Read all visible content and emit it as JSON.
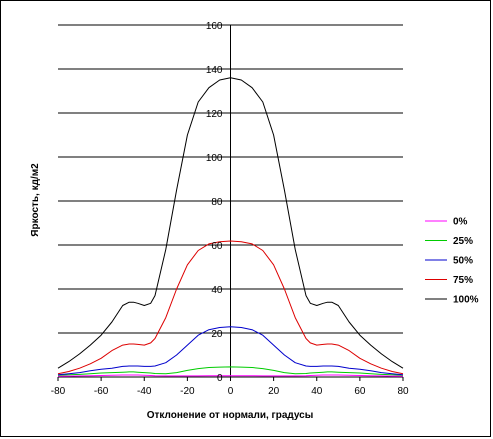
{
  "chart_data": {
    "type": "line",
    "title": "",
    "xlabel": "Отклонение от нормали, градусы",
    "ylabel": "Яркость, кд/м2",
    "xlim": [
      -80,
      80
    ],
    "ylim": [
      0,
      160
    ],
    "xticks": [
      -80,
      -60,
      -40,
      -20,
      0,
      20,
      40,
      60,
      80
    ],
    "yticks": [
      0,
      20,
      40,
      60,
      80,
      100,
      120,
      140,
      160
    ],
    "grid": "horizontal",
    "legend": "right",
    "x": [
      -80,
      -75,
      -70,
      -65,
      -60,
      -55,
      -50,
      -47,
      -45,
      -43,
      -40,
      -37,
      -35,
      -30,
      -25,
      -20,
      -15,
      -10,
      -5,
      0,
      5,
      10,
      15,
      20,
      25,
      30,
      35,
      37,
      40,
      43,
      45,
      47,
      50,
      55,
      60,
      65,
      70,
      75,
      80
    ],
    "series": [
      {
        "name": "0%",
        "color": "#ff00ff",
        "values": [
          0.3,
          0.4,
          0.5,
          0.6,
          0.7,
          0.8,
          0.9,
          0.9,
          0.9,
          0.9,
          0.8,
          0.7,
          0.6,
          0.5,
          0.5,
          0.5,
          0.5,
          0.6,
          0.6,
          0.6,
          0.6,
          0.6,
          0.5,
          0.5,
          0.5,
          0.5,
          0.6,
          0.7,
          0.8,
          0.9,
          0.9,
          0.9,
          0.9,
          0.8,
          0.7,
          0.6,
          0.5,
          0.4,
          0.3
        ]
      },
      {
        "name": "25%",
        "color": "#00cc00",
        "values": [
          0.8,
          1.0,
          1.2,
          1.5,
          1.8,
          2.0,
          2.2,
          2.3,
          2.3,
          2.2,
          2.0,
          1.8,
          1.6,
          1.5,
          2.0,
          3.0,
          3.8,
          4.3,
          4.5,
          4.6,
          4.5,
          4.3,
          3.8,
          3.0,
          2.0,
          1.5,
          1.6,
          1.8,
          2.0,
          2.2,
          2.3,
          2.3,
          2.2,
          2.0,
          1.8,
          1.5,
          1.2,
          1.0,
          0.8
        ]
      },
      {
        "name": "50%",
        "color": "#0000cc",
        "values": [
          1.0,
          1.5,
          2.0,
          2.8,
          3.5,
          4.0,
          4.8,
          5.0,
          5.0,
          5.0,
          4.8,
          4.8,
          5.0,
          6.5,
          10.0,
          14.5,
          19.0,
          21.5,
          22.5,
          22.8,
          22.5,
          21.5,
          19.0,
          14.5,
          10.0,
          6.5,
          5.0,
          4.8,
          4.8,
          5.0,
          5.0,
          5.0,
          4.8,
          4.0,
          3.5,
          2.8,
          2.0,
          1.5,
          1.0
        ]
      },
      {
        "name": "75%",
        "color": "#dd0000",
        "values": [
          1.5,
          2.5,
          4.0,
          6.0,
          8.5,
          12.0,
          14.5,
          15.0,
          15.0,
          14.8,
          14.5,
          15.5,
          17.5,
          27.0,
          40.0,
          51.0,
          57.5,
          60.5,
          61.5,
          61.8,
          61.5,
          60.5,
          57.5,
          51.0,
          40.0,
          27.0,
          17.5,
          15.5,
          14.5,
          14.8,
          15.0,
          15.0,
          14.5,
          12.0,
          8.5,
          6.0,
          4.0,
          2.5,
          1.5
        ]
      },
      {
        "name": "100%",
        "color": "#000000",
        "values": [
          4.0,
          7.0,
          10.5,
          14.5,
          19.0,
          25.0,
          32.5,
          34.0,
          34.0,
          33.5,
          32.5,
          33.5,
          37.0,
          58.0,
          85.0,
          110.0,
          125.0,
          131.5,
          135.0,
          136.0,
          135.0,
          131.5,
          125.0,
          110.0,
          85.0,
          58.0,
          37.0,
          33.5,
          32.5,
          33.5,
          34.0,
          34.0,
          32.5,
          25.0,
          19.0,
          14.5,
          10.5,
          7.0,
          4.0
        ]
      }
    ]
  }
}
